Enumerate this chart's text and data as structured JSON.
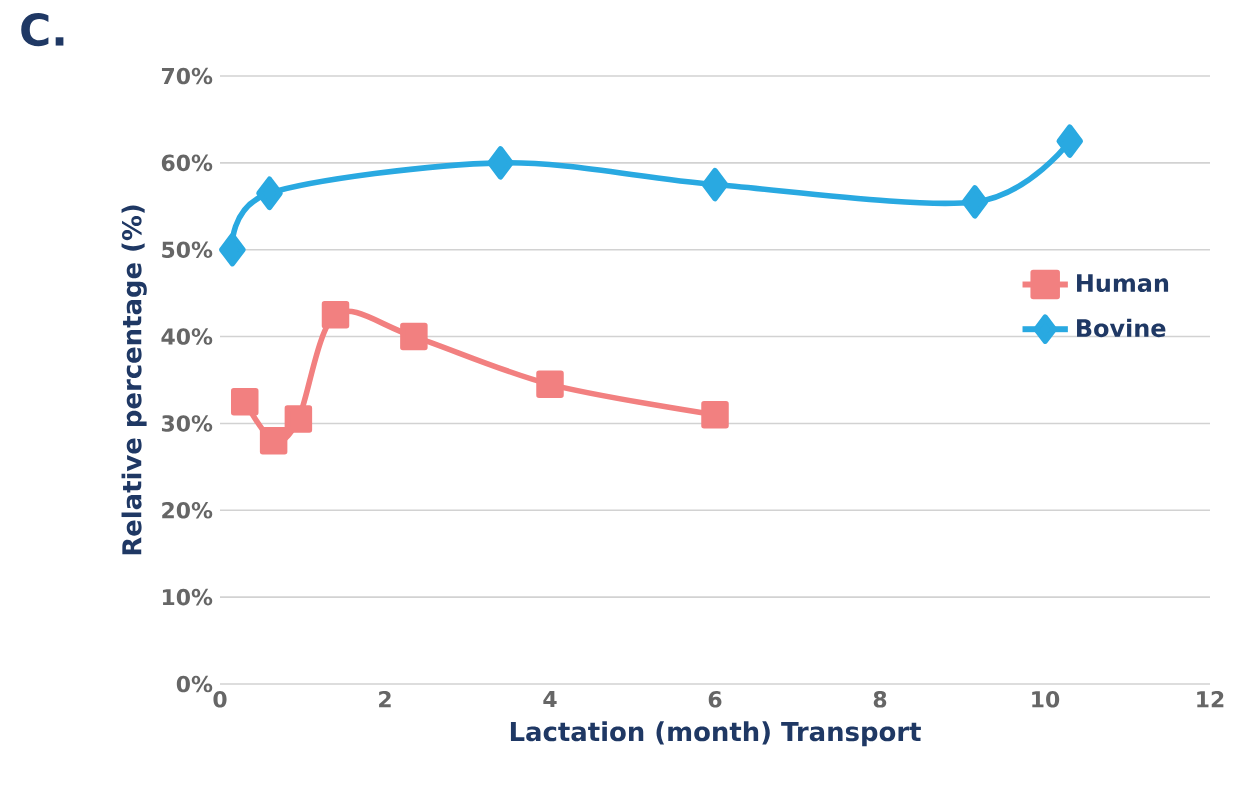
{
  "chart_data": {
    "type": "line",
    "xlabel": "Lactation (month) Transport",
    "ylabel": "Relative percentage (%)",
    "annotations": [
      "C."
    ],
    "xlim": [
      0,
      12
    ],
    "xticks": [
      0,
      2,
      4,
      6,
      8,
      10,
      12
    ],
    "ylim": [
      0,
      70
    ],
    "yticks": [
      {
        "value": 0,
        "label": "0%"
      },
      {
        "value": 10,
        "label": "10%"
      },
      {
        "value": 20,
        "label": "20%"
      },
      {
        "value": 30,
        "label": "30%"
      },
      {
        "value": 40,
        "label": "40%"
      },
      {
        "value": 50,
        "label": "50%"
      },
      {
        "value": 60,
        "label": "60%"
      },
      {
        "value": 70,
        "label": "70%"
      }
    ],
    "grid": "y",
    "legend": "right",
    "series": [
      {
        "name": "Human",
        "color": "#f28080",
        "marker": "square",
        "x": [
          0.3,
          0.65,
          0.95,
          1.4,
          2.35,
          4,
          6
        ],
        "values": [
          32.5,
          28,
          30.5,
          42.5,
          40,
          34.5,
          31
        ]
      },
      {
        "name": "Bovine",
        "color": "#29a9e1",
        "marker": "diamond",
        "x": [
          0.15,
          0.6,
          3.4,
          6,
          9.15,
          10.3
        ],
        "values": [
          50,
          56.5,
          60,
          57.5,
          55.5,
          62.5
        ]
      }
    ]
  }
}
